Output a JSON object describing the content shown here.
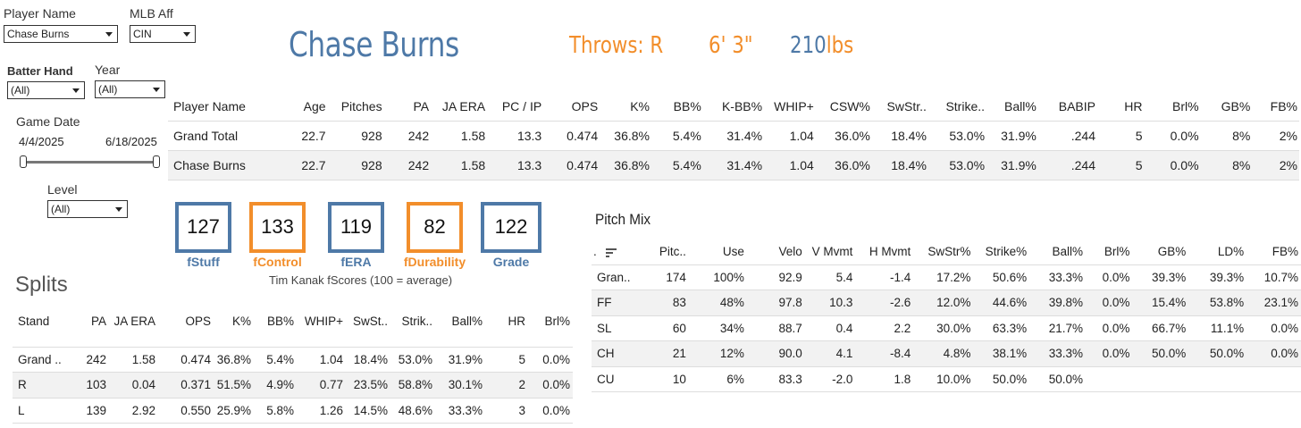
{
  "colors": {
    "blue": "#4e79a7",
    "orange": "#f28e2b"
  },
  "filters": {
    "player_name_label": "Player Name",
    "player_name_value": "Chase Burns",
    "mlb_aff_label": "MLB Aff",
    "mlb_aff_value": "CIN",
    "batter_hand_label": "Batter Hand",
    "batter_hand_value": "(All)",
    "year_label": "Year",
    "year_value": "(All)",
    "game_date_label": "Game Date",
    "game_date_start": "4/4/2025",
    "game_date_end": "6/18/2025",
    "level_label": "Level",
    "level_value": "(All)"
  },
  "hero": {
    "name": "Chase Burns",
    "throws": "Throws: R",
    "height": "6' 3\"",
    "weight_num": "210",
    "weight_unit": "lbs"
  },
  "summary": {
    "headers": [
      "Player Name",
      "Age",
      "Pitches",
      "PA",
      "JA ERA",
      "PC / IP",
      "OPS",
      "K%",
      "BB%",
      "K-BB%",
      "WHIP+",
      "CSW%",
      "SwStr..",
      "Strike..",
      "Ball%",
      "BABIP",
      "HR",
      "Brl%",
      "GB%",
      "FB%"
    ],
    "rows": [
      [
        "Grand Total",
        "22.7",
        "928",
        "242",
        "1.58",
        "13.3",
        "0.474",
        "36.8%",
        "5.4%",
        "31.4%",
        "1.04",
        "36.0%",
        "18.4%",
        "53.0%",
        "31.9%",
        ".244",
        "5",
        "0.0%",
        "8%",
        "2%"
      ],
      [
        "Chase Burns",
        "22.7",
        "928",
        "242",
        "1.58",
        "13.3",
        "0.474",
        "36.8%",
        "5.4%",
        "31.4%",
        "1.04",
        "36.0%",
        "18.4%",
        "53.0%",
        "31.9%",
        ".244",
        "5",
        "0.0%",
        "8%",
        "2%"
      ]
    ]
  },
  "scores": {
    "items": [
      {
        "value": "127",
        "label": "fStuff",
        "color": "#4e79a7"
      },
      {
        "value": "133",
        "label": "fControl",
        "color": "#f28e2b"
      },
      {
        "value": "119",
        "label": "fERA",
        "color": "#4e79a7"
      },
      {
        "value": "82",
        "label": "fDurability",
        "color": "#f28e2b"
      },
      {
        "value": "122",
        "label": "Grade",
        "color": "#4e79a7"
      }
    ],
    "caption": "Tim Kanak fScores (100 = average)"
  },
  "splits": {
    "title": "Splits",
    "headers": [
      "Stand",
      "PA",
      "JA ERA",
      "OPS",
      "K%",
      "BB%",
      "WHIP+",
      "SwSt..",
      "Strik..",
      "Ball%",
      "HR",
      "Brl%"
    ],
    "rows": [
      [
        "Grand ..",
        "242",
        "1.58",
        "0.474",
        "36.8%",
        "5.4%",
        "1.04",
        "18.4%",
        "53.0%",
        "31.9%",
        "5",
        "0.0%"
      ],
      [
        "R",
        "103",
        "0.04",
        "0.371",
        "51.5%",
        "4.9%",
        "0.77",
        "23.5%",
        "58.8%",
        "30.1%",
        "2",
        "0.0%"
      ],
      [
        "L",
        "139",
        "2.92",
        "0.550",
        "25.9%",
        "5.8%",
        "1.26",
        "14.5%",
        "48.6%",
        "33.3%",
        "3",
        "0.0%"
      ]
    ]
  },
  "pitch_mix": {
    "title": "Pitch Mix",
    "headers": [
      ".",
      "Pitc..",
      "Use",
      "Velo",
      "V Mvmt",
      "H Mvmt",
      "SwStr%",
      "Strike%",
      "Ball%",
      "Brl%",
      "GB%",
      "LD%",
      "FB%"
    ],
    "rows": [
      [
        "Gran..",
        "174",
        "100%",
        "92.9",
        "5.4",
        "-1.4",
        "17.2%",
        "50.6%",
        "33.3%",
        "0.0%",
        "39.3%",
        "39.3%",
        "10.7%"
      ],
      [
        "FF",
        "83",
        "48%",
        "97.8",
        "10.3",
        "-2.6",
        "12.0%",
        "44.6%",
        "39.8%",
        "0.0%",
        "15.4%",
        "53.8%",
        "23.1%"
      ],
      [
        "SL",
        "60",
        "34%",
        "88.7",
        "0.4",
        "2.2",
        "30.0%",
        "63.3%",
        "21.7%",
        "0.0%",
        "66.7%",
        "11.1%",
        "0.0%"
      ],
      [
        "CH",
        "21",
        "12%",
        "90.0",
        "4.1",
        "-8.4",
        "4.8%",
        "38.1%",
        "33.3%",
        "0.0%",
        "50.0%",
        "50.0%",
        "0.0%"
      ],
      [
        "CU",
        "10",
        "6%",
        "83.3",
        "-2.0",
        "1.8",
        "10.0%",
        "50.0%",
        "50.0%",
        "",
        "",
        "",
        ""
      ]
    ]
  }
}
